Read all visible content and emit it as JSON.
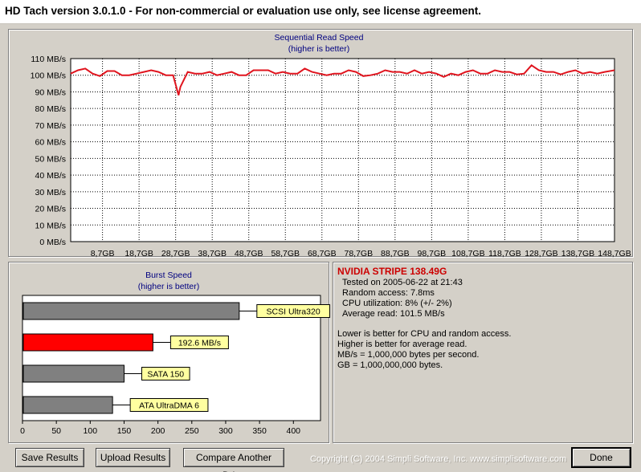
{
  "window": {
    "title": "HD Tach version 3.0.1.0  - For non-commercial or evaluation use only, see license agreement."
  },
  "chart_data": [
    {
      "type": "line",
      "title": "Sequential Read Speed",
      "subtitle": "(higher is better)",
      "y_ticks": [
        "110 MB/s",
        "100 MB/s",
        "90 MB/s",
        "80 MB/s",
        "70 MB/s",
        "60 MB/s",
        "50 MB/s",
        "40 MB/s",
        "30 MB/s",
        "20 MB/s",
        "10 MB/s",
        "0 MB/s"
      ],
      "x_ticks": [
        "8,7GB",
        "18,7GB",
        "28,7GB",
        "38,7GB",
        "48,7GB",
        "58,7GB",
        "68,7GB",
        "78,7GB",
        "88,7GB",
        "98,7GB",
        "108,7GB",
        "118,7GB",
        "128,7GB",
        "138,7GB",
        "148,7GB"
      ],
      "ylim": [
        0,
        110
      ],
      "xlim": [
        0,
        148.7
      ],
      "grid": true,
      "line_color": "#e0141e",
      "series": [
        {
          "x": [
            0,
            2,
            4,
            6,
            8,
            10,
            12,
            14,
            16,
            18,
            20,
            22,
            24,
            26,
            28,
            29.5,
            30,
            32,
            34,
            36,
            38,
            40,
            42,
            44,
            46,
            48,
            50,
            52,
            54,
            56,
            58,
            60,
            62,
            64,
            66,
            68,
            70,
            72,
            74,
            76,
            78,
            80,
            82,
            84,
            86,
            88,
            90,
            92,
            94,
            96,
            98,
            100,
            102,
            104,
            106,
            108,
            110,
            112,
            114,
            116,
            118,
            120,
            122,
            124,
            126,
            128,
            130,
            132,
            134,
            136,
            138,
            140,
            142,
            144,
            146,
            148.7
          ],
          "y": [
            101,
            103,
            104,
            101,
            99.5,
            102.5,
            102.5,
            100,
            100,
            101,
            102,
            103,
            102,
            100,
            100,
            88,
            93,
            102,
            101,
            101,
            102,
            100,
            101,
            102,
            100,
            100,
            103,
            103,
            103,
            101,
            102,
            101,
            101,
            104,
            102,
            101,
            100,
            101,
            101,
            103,
            102,
            99.5,
            100,
            101,
            103,
            102,
            102,
            101,
            103,
            101,
            102,
            101,
            99,
            101,
            100,
            102,
            103,
            101,
            101,
            103,
            102,
            102,
            100.5,
            101,
            106,
            103,
            102,
            102,
            100.5,
            102,
            103,
            101,
            102,
            101,
            102,
            103
          ]
        }
      ]
    },
    {
      "type": "bar",
      "title": "Burst Speed",
      "subtitle": "(higher is better)",
      "orientation": "horizontal",
      "categories": [
        "SCSI Ultra320",
        "192.6 MB/s",
        "SATA 150",
        "ATA UltraDMA 6"
      ],
      "values": [
        320,
        192.6,
        150,
        133
      ],
      "colors": [
        "#808080",
        "#ff0000",
        "#808080",
        "#808080"
      ],
      "label_background": "#ffffa0",
      "x_ticks": [
        "0",
        "50",
        "100",
        "150",
        "200",
        "250",
        "300",
        "350",
        "400"
      ],
      "xlim": [
        0,
        440
      ]
    }
  ],
  "info": {
    "drive": "NVIDIA STRIPE 138.49G",
    "lines": [
      "Tested on 2005-06-22 at 21:43",
      "Random access: 7.8ms",
      "CPU utilization: 8% (+/- 2%)",
      "Average read: 101.5 MB/s"
    ],
    "notes": [
      "Lower is better for CPU and random access.",
      "Higher is better for average read.",
      "MB/s = 1,000,000 bytes per second.",
      "GB = 1,000,000,000 bytes."
    ],
    "drive_color": "#cc0000"
  },
  "buttons": {
    "save": "Save Results",
    "upload": "Upload Results",
    "compare": "Compare Another Drive",
    "done": "Done"
  },
  "footer": {
    "copyright": "Copyright (C) 2004 Simpli Software, Inc.  www.simplisoftware.com"
  }
}
